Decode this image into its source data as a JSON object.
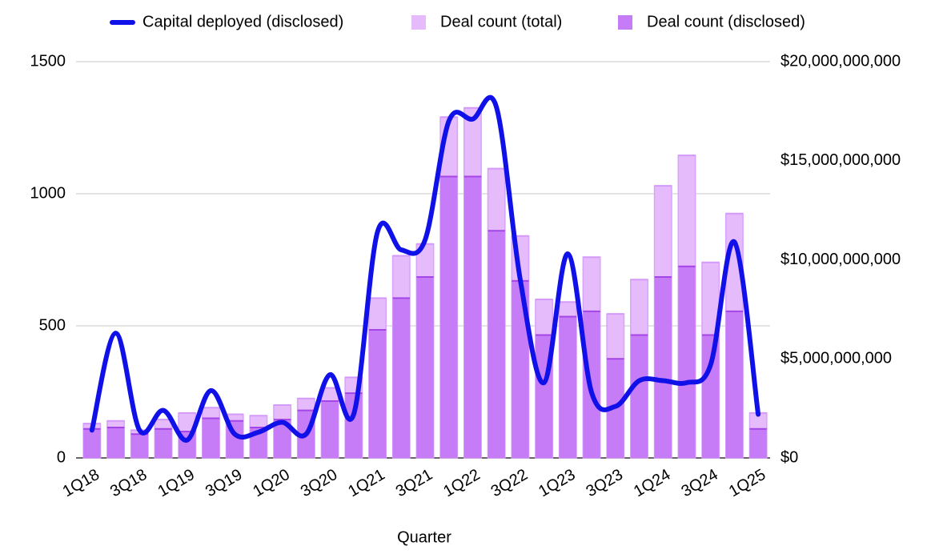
{
  "chart_data": {
    "type": "bar-line",
    "x_label": "Quarter",
    "categories": [
      "1Q18",
      null,
      "3Q18",
      null,
      "1Q19",
      null,
      "3Q19",
      null,
      "1Q20",
      null,
      "3Q20",
      null,
      "1Q21",
      null,
      "3Q21",
      null,
      "1Q22",
      null,
      "3Q22",
      null,
      "1Q23",
      null,
      "3Q23",
      null,
      "1Q24",
      null,
      "3Q24",
      null,
      "1Q25"
    ],
    "series": [
      {
        "name": "Capital deployed (disclosed)",
        "color": "#1010e8",
        "axis": "y2",
        "kind": "line",
        "values": [
          1400000000,
          6300000000,
          1400000000,
          2400000000,
          900000000,
          3400000000,
          1200000000,
          1300000000,
          1800000000,
          1200000000,
          4200000000,
          2200000000,
          11400000000,
          10500000000,
          11000000000,
          17000000000,
          17100000000,
          17700000000,
          9000000000,
          3800000000,
          10300000000,
          3300000000,
          2600000000,
          3900000000,
          3900000000,
          3800000000,
          4700000000,
          10900000000,
          2200000000
        ]
      },
      {
        "name": "Deal count (total)",
        "color": "#e6bbfc",
        "kind": "bar",
        "values": [
          130,
          140,
          105,
          145,
          170,
          190,
          165,
          160,
          200,
          225,
          265,
          305,
          605,
          765,
          810,
          1290,
          1325,
          1095,
          840,
          600,
          590,
          760,
          545,
          675,
          1030,
          1145,
          740,
          925,
          170
        ]
      },
      {
        "name": "Deal count (disclosed)",
        "color": "#c67cf6",
        "kind": "bar",
        "values": [
          110,
          115,
          90,
          110,
          100,
          150,
          140,
          115,
          145,
          180,
          215,
          245,
          485,
          605,
          685,
          1065,
          1065,
          860,
          670,
          465,
          535,
          555,
          375,
          465,
          685,
          725,
          465,
          555,
          110
        ]
      }
    ],
    "ylim": [
      0,
      1500
    ],
    "yticks": [
      0,
      500,
      1000,
      1500
    ],
    "y2lim": [
      0,
      20000000000
    ],
    "y2ticks": [
      {
        "value": 0,
        "label": "$0"
      },
      {
        "value": 5000000000,
        "label": "$5,000,000,000"
      },
      {
        "value": 10000000000,
        "label": "$10,000,000,000"
      },
      {
        "value": 15000000000,
        "label": "$15,000,000,000"
      },
      {
        "value": 20000000000,
        "label": "$20,000,000,000"
      }
    ],
    "grid": true,
    "legend": "top"
  }
}
